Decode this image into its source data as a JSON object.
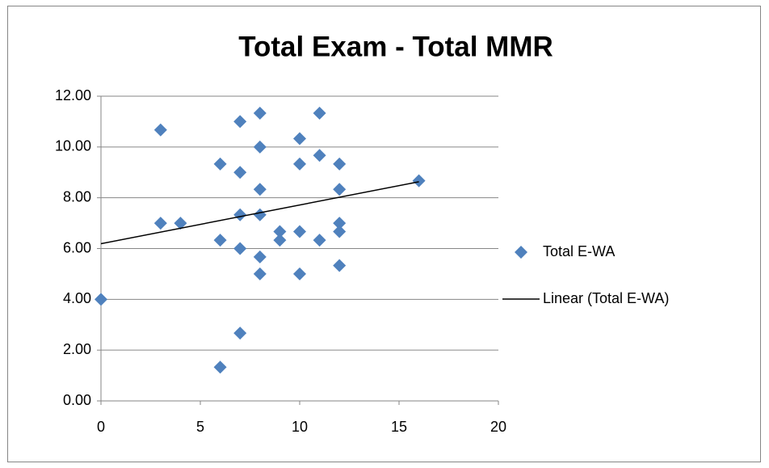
{
  "chart_data": {
    "type": "scatter",
    "title": "Total Exam - Total MMR",
    "xlim": [
      0,
      20
    ],
    "xticks": [
      0,
      5,
      10,
      15,
      20
    ],
    "ylim": [
      0,
      12
    ],
    "yticks": [
      {
        "value": 0,
        "label": "0.00"
      },
      {
        "value": 2,
        "label": "2.00"
      },
      {
        "value": 4,
        "label": "4.00"
      },
      {
        "value": 6,
        "label": "6.00"
      },
      {
        "value": 8,
        "label": "8.00"
      },
      {
        "value": 10,
        "label": "10.00"
      },
      {
        "value": 12,
        "label": "12.00"
      }
    ],
    "grid": true,
    "legend": "right",
    "series": [
      {
        "name": "Total E-WA",
        "color": "#4f81bd",
        "x": [
          0,
          3,
          3,
          4,
          6,
          6,
          6,
          7,
          7,
          7,
          7,
          7,
          8,
          8,
          8,
          8,
          8,
          8,
          9,
          9,
          10,
          10,
          10,
          10,
          11,
          11,
          11,
          12,
          12,
          12,
          12,
          12,
          16
        ],
        "values": [
          4.0,
          10.67,
          7.0,
          7.0,
          9.33,
          6.33,
          1.33,
          11.0,
          9.0,
          7.33,
          6.0,
          2.67,
          11.33,
          10.0,
          8.33,
          7.33,
          5.67,
          5.0,
          6.67,
          6.33,
          10.33,
          9.33,
          6.67,
          5.0,
          11.33,
          9.67,
          6.33,
          9.33,
          8.33,
          7.0,
          6.67,
          5.33,
          8.67
        ]
      },
      {
        "name": "Linear (Total E-WA)",
        "type": "line",
        "color": "#000000",
        "x": [
          0,
          16
        ],
        "values": [
          6.19,
          8.63
        ]
      }
    ]
  }
}
